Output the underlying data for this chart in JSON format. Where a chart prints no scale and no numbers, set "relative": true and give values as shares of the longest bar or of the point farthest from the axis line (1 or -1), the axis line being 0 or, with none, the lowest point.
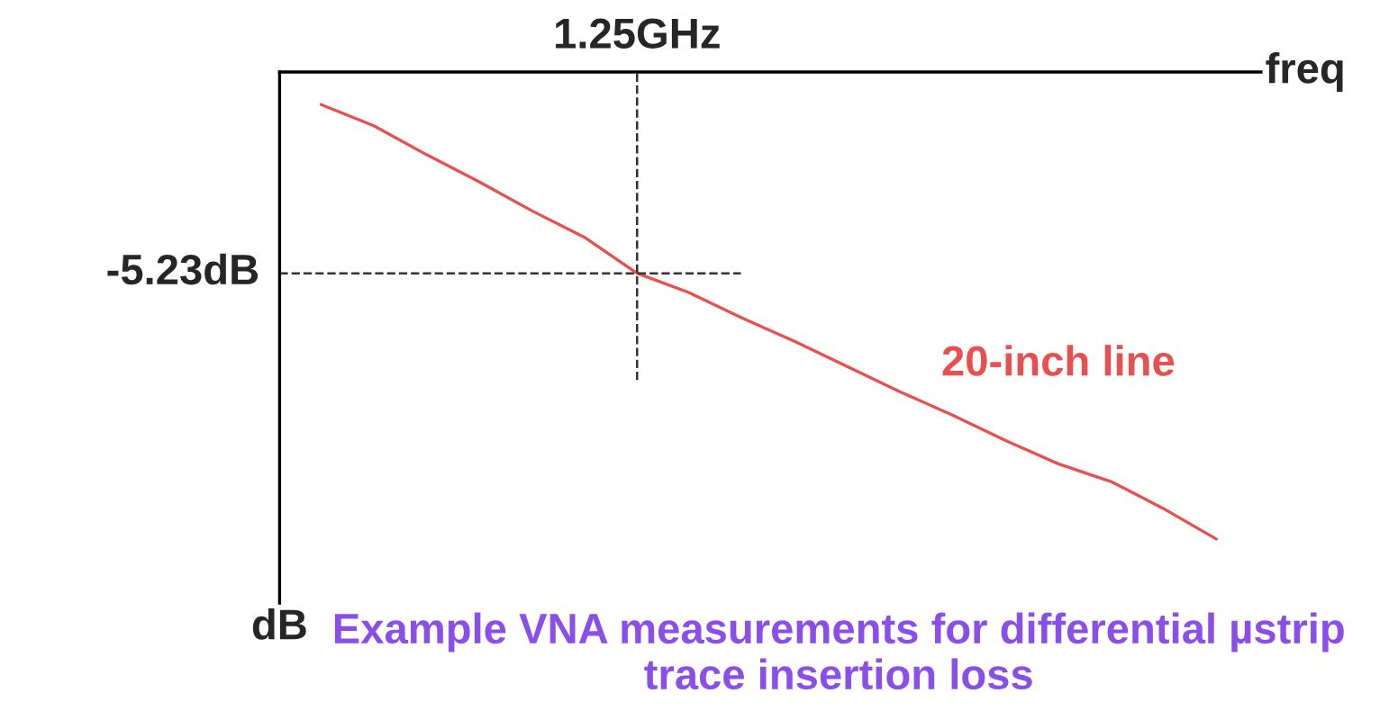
{
  "chart_data": {
    "type": "line",
    "xlabel": "freq",
    "ylabel": "dB",
    "relative": true,
    "categories": [
      null,
      null,
      null,
      null,
      null,
      null,
      null,
      null,
      null,
      null,
      null,
      null,
      null,
      null,
      null,
      null,
      null,
      null
    ],
    "series": [
      {
        "name": "20-inch line",
        "color": "#e8504f",
        "values": [
          -0.07,
          -0.115,
          -0.177,
          -0.235,
          -0.297,
          -0.354,
          -0.431,
          -0.473,
          -0.527,
          -0.577,
          -0.631,
          -0.685,
          -0.735,
          -0.789,
          -0.839,
          -0.877,
          -0.935,
          -1
        ]
      }
    ],
    "ref_lines": [
      {
        "axis": "y",
        "value": -0.431,
        "label": "-5.23dB",
        "line_style": "dashed",
        "color": "#333333"
      }
    ],
    "annotations": [
      "1.25GHz",
      "Example VNA measurements for differential µstrip trace insertion loss"
    ],
    "marker": "none",
    "line_style": "solid"
  }
}
